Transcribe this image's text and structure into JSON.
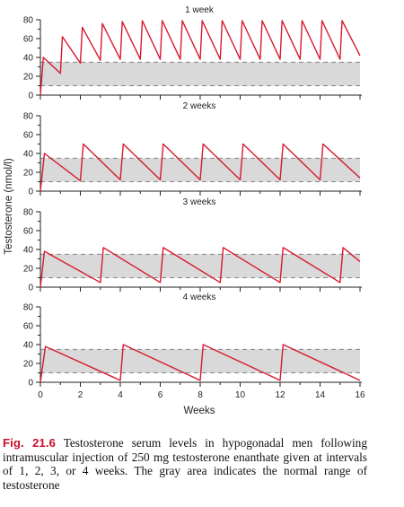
{
  "chart_data": {
    "type": "line",
    "ylabel": "Testosterone (nmol/l)",
    "xlabel": "Weeks",
    "xlim": [
      0,
      16
    ],
    "ylim": [
      0,
      80
    ],
    "xticks": [
      0,
      2,
      4,
      6,
      8,
      10,
      12,
      14,
      16
    ],
    "yticks": [
      0,
      20,
      40,
      60,
      80
    ],
    "normal_range": [
      10,
      35
    ],
    "line_color": "#d7192f",
    "band_color": "#d9d9d9",
    "panels": [
      {
        "label": "1 week",
        "interval_weeks": 1,
        "points": [
          [
            0,
            0
          ],
          [
            0.15,
            40
          ],
          [
            1,
            23
          ],
          [
            1.1,
            62
          ],
          [
            2,
            34
          ],
          [
            2.1,
            72
          ],
          [
            3,
            37
          ],
          [
            3.1,
            76
          ],
          [
            4,
            38
          ],
          [
            4.1,
            78
          ],
          [
            5,
            38
          ],
          [
            5.1,
            79
          ],
          [
            6,
            38
          ],
          [
            6.1,
            79
          ],
          [
            7,
            38
          ],
          [
            7.1,
            79
          ],
          [
            8,
            38
          ],
          [
            8.1,
            79
          ],
          [
            9,
            38
          ],
          [
            9.1,
            79
          ],
          [
            10,
            38
          ],
          [
            10.1,
            79
          ],
          [
            11,
            38
          ],
          [
            11.1,
            79
          ],
          [
            12,
            38
          ],
          [
            12.1,
            79
          ],
          [
            13,
            38
          ],
          [
            13.1,
            79
          ],
          [
            14,
            38
          ],
          [
            14.1,
            79
          ],
          [
            15,
            38
          ],
          [
            15.1,
            79
          ],
          [
            16,
            42
          ]
        ]
      },
      {
        "label": "2 weeks",
        "interval_weeks": 2,
        "points": [
          [
            0,
            0
          ],
          [
            0.2,
            40
          ],
          [
            2,
            11
          ],
          [
            2.15,
            50
          ],
          [
            4,
            12
          ],
          [
            4.15,
            50
          ],
          [
            6,
            12
          ],
          [
            6.15,
            50
          ],
          [
            8,
            12
          ],
          [
            8.15,
            50
          ],
          [
            10,
            12
          ],
          [
            10.15,
            50
          ],
          [
            12,
            12
          ],
          [
            12.15,
            50
          ],
          [
            14,
            12
          ],
          [
            14.15,
            50
          ],
          [
            16,
            14
          ]
        ]
      },
      {
        "label": "3 weeks",
        "interval_weeks": 3,
        "points": [
          [
            0,
            0
          ],
          [
            0.2,
            38
          ],
          [
            3,
            5
          ],
          [
            3.15,
            42
          ],
          [
            6,
            5
          ],
          [
            6.15,
            42
          ],
          [
            9,
            5
          ],
          [
            9.15,
            42
          ],
          [
            12,
            5
          ],
          [
            12.15,
            42
          ],
          [
            15,
            5
          ],
          [
            15.15,
            42
          ],
          [
            16,
            27
          ]
        ]
      },
      {
        "label": "4 weeks",
        "interval_weeks": 4,
        "points": [
          [
            0,
            0
          ],
          [
            0.25,
            38
          ],
          [
            4,
            2
          ],
          [
            4.15,
            40
          ],
          [
            8,
            2
          ],
          [
            8.15,
            40
          ],
          [
            12,
            2
          ],
          [
            12.15,
            40
          ],
          [
            16,
            2
          ]
        ]
      }
    ]
  },
  "caption": {
    "label": "Fig. 21.6",
    "text": "Testosterone serum levels in hypogonadal men following intramuscular injection of 250 mg testosterone enanthate given at intervals of 1, 2, 3, or 4 weeks. The gray area indicates the normal range of testosterone"
  }
}
